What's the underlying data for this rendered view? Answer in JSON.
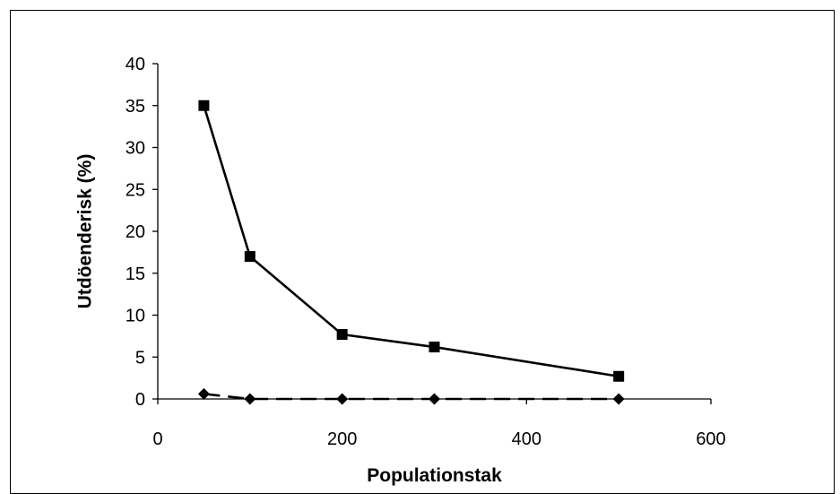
{
  "chart_data": {
    "type": "line",
    "xlabel": "Populationstak",
    "ylabel": "Utdöenderisk (%)",
    "xlim": [
      0,
      600
    ],
    "ylim": [
      0,
      40
    ],
    "x_ticks": [
      "0",
      "200",
      "400",
      "600"
    ],
    "y_ticks": [
      "0",
      "5",
      "10",
      "15",
      "20",
      "25",
      "30",
      "35",
      "40"
    ],
    "grid": false,
    "legend": "none",
    "series": [
      {
        "x": [
          50,
          100,
          200,
          300,
          500
        ],
        "values": [
          35,
          17,
          7.7,
          6.2,
          2.7
        ],
        "marker": "square",
        "line_style": "solid",
        "color": "#000000"
      },
      {
        "x": [
          50,
          100,
          200,
          300,
          500
        ],
        "values": [
          0.6,
          0,
          0,
          0,
          0
        ],
        "marker": "diamond",
        "line_style": "dashed",
        "color": "#000000"
      }
    ]
  }
}
